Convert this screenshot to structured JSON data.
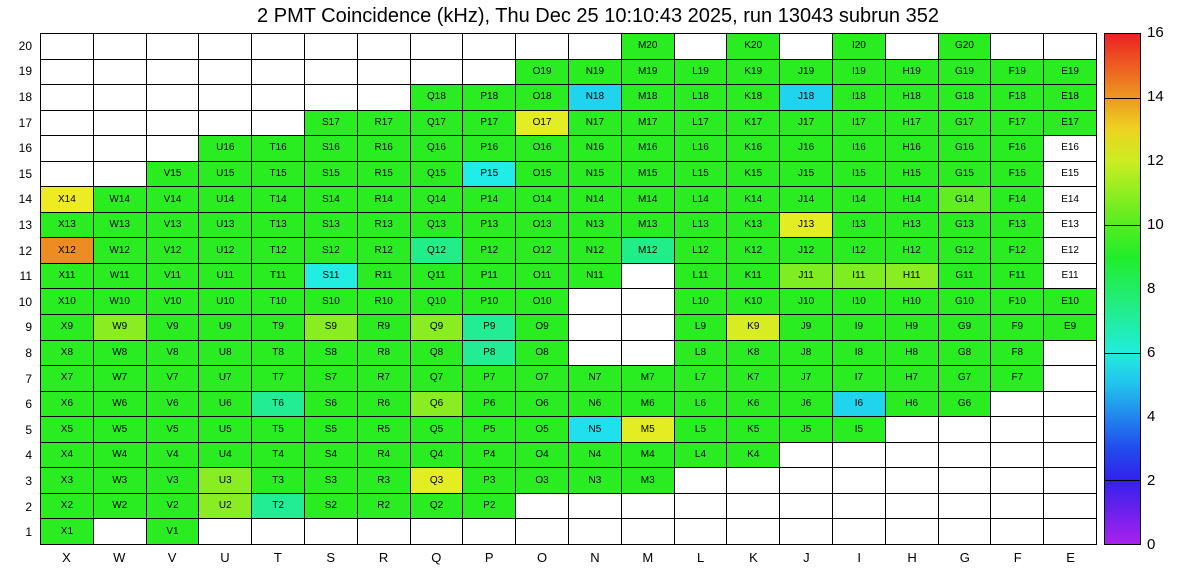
{
  "title": "2 PMT Coincidence (kHz), Thu Dec 25 10:10:43 2025, run 13043 subrun 352",
  "chart_data": {
    "type": "heatmap",
    "unit": "kHz",
    "run": 13043,
    "subrun": 352,
    "timestamp": "Thu Dec 25 10:10:43 2025",
    "columns": [
      "X",
      "W",
      "V",
      "U",
      "T",
      "S",
      "R",
      "Q",
      "P",
      "O",
      "N",
      "M",
      "L",
      "K",
      "J",
      "I",
      "H",
      "G",
      "F",
      "E"
    ],
    "row_min": 1,
    "row_max": 20,
    "colorbar": {
      "min": 0,
      "max": 16,
      "tick_labels": [
        0,
        2,
        4,
        6,
        8,
        10,
        12,
        14,
        16
      ],
      "line_ticks": [
        2,
        6,
        10,
        14
      ],
      "palette": "rainbow",
      "low_color": "#8a2be2",
      "high_color": "#ff0000"
    },
    "cells": [
      [
        "M",
        20,
        9.3
      ],
      [
        "K",
        20,
        9.3
      ],
      [
        "I",
        20,
        9.3
      ],
      [
        "G",
        20,
        9.3
      ],
      [
        "O",
        19,
        9.3
      ],
      [
        "N",
        19,
        9.3
      ],
      [
        "M",
        19,
        9.3
      ],
      [
        "L",
        19,
        9.3
      ],
      [
        "K",
        19,
        9.3
      ],
      [
        "J",
        19,
        9.3
      ],
      [
        "I",
        19,
        9.3
      ],
      [
        "H",
        19,
        9.3
      ],
      [
        "G",
        19,
        9.3
      ],
      [
        "F",
        19,
        9.3
      ],
      [
        "E",
        19,
        9.3
      ],
      [
        "Q",
        18,
        9.3
      ],
      [
        "P",
        18,
        9.3
      ],
      [
        "O",
        18,
        9.3
      ],
      [
        "N",
        18,
        5.3
      ],
      [
        "M",
        18,
        9.3
      ],
      [
        "L",
        18,
        9.3
      ],
      [
        "K",
        18,
        9.3
      ],
      [
        "J",
        18,
        5.3
      ],
      [
        "I",
        18,
        9.3
      ],
      [
        "H",
        18,
        9.3
      ],
      [
        "G",
        18,
        9.3
      ],
      [
        "F",
        18,
        9.3
      ],
      [
        "E",
        18,
        9.3
      ],
      [
        "S",
        17,
        9.3
      ],
      [
        "R",
        17,
        9.3
      ],
      [
        "Q",
        17,
        9.3
      ],
      [
        "P",
        17,
        9.3
      ],
      [
        "O",
        17,
        12.4
      ],
      [
        "N",
        17,
        9.3
      ],
      [
        "M",
        17,
        9.3
      ],
      [
        "L",
        17,
        9.3
      ],
      [
        "K",
        17,
        9.3
      ],
      [
        "J",
        17,
        9.3
      ],
      [
        "I",
        17,
        9.3
      ],
      [
        "H",
        17,
        9.3
      ],
      [
        "G",
        17,
        9.3
      ],
      [
        "F",
        17,
        9.3
      ],
      [
        "E",
        17,
        9.3
      ],
      [
        "U",
        16,
        9.3
      ],
      [
        "T",
        16,
        9.3
      ],
      [
        "S",
        16,
        9.3
      ],
      [
        "R",
        16,
        9.3
      ],
      [
        "Q",
        16,
        9.3
      ],
      [
        "P",
        16,
        9.3
      ],
      [
        "O",
        16,
        9.3
      ],
      [
        "N",
        16,
        9.3
      ],
      [
        "M",
        16,
        9.3
      ],
      [
        "L",
        16,
        9.3
      ],
      [
        "K",
        16,
        9.3
      ],
      [
        "J",
        16,
        9.3
      ],
      [
        "I",
        16,
        9.3
      ],
      [
        "H",
        16,
        9.3
      ],
      [
        "G",
        16,
        9.3
      ],
      [
        "F",
        16,
        9.3
      ],
      [
        "E",
        16,
        null
      ],
      [
        "V",
        15,
        9.3
      ],
      [
        "U",
        15,
        9.3
      ],
      [
        "T",
        15,
        9.3
      ],
      [
        "S",
        15,
        9.3
      ],
      [
        "R",
        15,
        9.3
      ],
      [
        "Q",
        15,
        9.3
      ],
      [
        "P",
        15,
        5.8
      ],
      [
        "O",
        15,
        9.3
      ],
      [
        "N",
        15,
        9.3
      ],
      [
        "M",
        15,
        9.3
      ],
      [
        "L",
        15,
        9.3
      ],
      [
        "K",
        15,
        9.3
      ],
      [
        "J",
        15,
        9.3
      ],
      [
        "I",
        15,
        9.3
      ],
      [
        "H",
        15,
        9.3
      ],
      [
        "G",
        15,
        9.3
      ],
      [
        "F",
        15,
        9.3
      ],
      [
        "E",
        15,
        null
      ],
      [
        "X",
        14,
        12.6
      ],
      [
        "W",
        14,
        9.3
      ],
      [
        "V",
        14,
        9.3
      ],
      [
        "U",
        14,
        9.3
      ],
      [
        "T",
        14,
        9.3
      ],
      [
        "S",
        14,
        9.3
      ],
      [
        "R",
        14,
        9.3
      ],
      [
        "Q",
        14,
        9.3
      ],
      [
        "P",
        14,
        9.3
      ],
      [
        "O",
        14,
        9.3
      ],
      [
        "N",
        14,
        9.3
      ],
      [
        "M",
        14,
        9.3
      ],
      [
        "L",
        14,
        9.3
      ],
      [
        "K",
        14,
        9.3
      ],
      [
        "J",
        14,
        9.3
      ],
      [
        "I",
        14,
        9.3
      ],
      [
        "H",
        14,
        9.3
      ],
      [
        "G",
        14,
        10.2
      ],
      [
        "F",
        14,
        9.3
      ],
      [
        "E",
        14,
        null
      ],
      [
        "X",
        13,
        9.3
      ],
      [
        "W",
        13,
        9.3
      ],
      [
        "V",
        13,
        9.3
      ],
      [
        "U",
        13,
        9.3
      ],
      [
        "T",
        13,
        9.3
      ],
      [
        "S",
        13,
        9.3
      ],
      [
        "R",
        13,
        9.3
      ],
      [
        "Q",
        13,
        9.3
      ],
      [
        "P",
        13,
        9.3
      ],
      [
        "O",
        13,
        9.3
      ],
      [
        "N",
        13,
        9.3
      ],
      [
        "M",
        13,
        9.3
      ],
      [
        "L",
        13,
        9.3
      ],
      [
        "K",
        13,
        9.3
      ],
      [
        "J",
        13,
        12.4
      ],
      [
        "I",
        13,
        9.3
      ],
      [
        "H",
        13,
        9.3
      ],
      [
        "G",
        13,
        9.3
      ],
      [
        "F",
        13,
        9.3
      ],
      [
        "E",
        13,
        null
      ],
      [
        "X",
        12,
        14.2
      ],
      [
        "W",
        12,
        9.3
      ],
      [
        "V",
        12,
        9.3
      ],
      [
        "U",
        12,
        9.3
      ],
      [
        "T",
        12,
        9.3
      ],
      [
        "S",
        12,
        9.3
      ],
      [
        "R",
        12,
        9.3
      ],
      [
        "Q",
        12,
        7.4
      ],
      [
        "P",
        12,
        9.3
      ],
      [
        "O",
        12,
        9.3
      ],
      [
        "N",
        12,
        9.3
      ],
      [
        "M",
        12,
        7.4
      ],
      [
        "L",
        12,
        9.3
      ],
      [
        "K",
        12,
        9.3
      ],
      [
        "J",
        12,
        9.3
      ],
      [
        "I",
        12,
        9.3
      ],
      [
        "H",
        12,
        9.3
      ],
      [
        "G",
        12,
        9.3
      ],
      [
        "F",
        12,
        9.3
      ],
      [
        "E",
        12,
        null
      ],
      [
        "X",
        11,
        9.3
      ],
      [
        "W",
        11,
        9.3
      ],
      [
        "V",
        11,
        9.3
      ],
      [
        "U",
        11,
        9.3
      ],
      [
        "T",
        11,
        9.3
      ],
      [
        "S",
        11,
        5.9
      ],
      [
        "R",
        11,
        9.3
      ],
      [
        "Q",
        11,
        9.3
      ],
      [
        "P",
        11,
        9.3
      ],
      [
        "O",
        11,
        9.3
      ],
      [
        "N",
        11,
        9.3
      ],
      [
        "L",
        11,
        9.3
      ],
      [
        "K",
        11,
        9.3
      ],
      [
        "J",
        11,
        10.7
      ],
      [
        "I",
        11,
        10.7
      ],
      [
        "H",
        11,
        10.9
      ],
      [
        "G",
        11,
        9.3
      ],
      [
        "F",
        11,
        9.3
      ],
      [
        "E",
        11,
        null
      ],
      [
        "X",
        10,
        9.3
      ],
      [
        "W",
        10,
        9.3
      ],
      [
        "V",
        10,
        9.3
      ],
      [
        "U",
        10,
        9.3
      ],
      [
        "T",
        10,
        9.3
      ],
      [
        "S",
        10,
        9.3
      ],
      [
        "R",
        10,
        9.3
      ],
      [
        "Q",
        10,
        9.3
      ],
      [
        "P",
        10,
        9.3
      ],
      [
        "O",
        10,
        9.3
      ],
      [
        "L",
        10,
        9.3
      ],
      [
        "K",
        10,
        9.3
      ],
      [
        "J",
        10,
        9.3
      ],
      [
        "I",
        10,
        9.3
      ],
      [
        "H",
        10,
        9.3
      ],
      [
        "G",
        10,
        9.3
      ],
      [
        "F",
        10,
        9.3
      ],
      [
        "E",
        10,
        9.3
      ],
      [
        "X",
        9,
        9.3
      ],
      [
        "W",
        9,
        10.9
      ],
      [
        "V",
        9,
        9.3
      ],
      [
        "U",
        9,
        9.3
      ],
      [
        "T",
        9,
        9.3
      ],
      [
        "S",
        9,
        10.9
      ],
      [
        "R",
        9,
        9.3
      ],
      [
        "Q",
        9,
        10.9
      ],
      [
        "P",
        9,
        7.2
      ],
      [
        "O",
        9,
        9.3
      ],
      [
        "L",
        9,
        9.3
      ],
      [
        "K",
        9,
        12.2
      ],
      [
        "J",
        9,
        9.3
      ],
      [
        "I",
        9,
        9.3
      ],
      [
        "H",
        9,
        9.3
      ],
      [
        "G",
        9,
        9.3
      ],
      [
        "F",
        9,
        9.3
      ],
      [
        "E",
        9,
        9.3
      ],
      [
        "X",
        8,
        9.3
      ],
      [
        "W",
        8,
        9.3
      ],
      [
        "V",
        8,
        9.3
      ],
      [
        "U",
        8,
        9.3
      ],
      [
        "T",
        8,
        9.3
      ],
      [
        "S",
        8,
        9.3
      ],
      [
        "R",
        8,
        9.3
      ],
      [
        "Q",
        8,
        9.3
      ],
      [
        "P",
        8,
        7.2
      ],
      [
        "O",
        8,
        9.3
      ],
      [
        "L",
        8,
        9.3
      ],
      [
        "K",
        8,
        9.3
      ],
      [
        "J",
        8,
        9.3
      ],
      [
        "I",
        8,
        9.3
      ],
      [
        "H",
        8,
        9.3
      ],
      [
        "G",
        8,
        9.3
      ],
      [
        "F",
        8,
        9.3
      ],
      [
        "X",
        7,
        9.3
      ],
      [
        "W",
        7,
        9.3
      ],
      [
        "V",
        7,
        9.3
      ],
      [
        "U",
        7,
        9.3
      ],
      [
        "T",
        7,
        9.3
      ],
      [
        "S",
        7,
        9.3
      ],
      [
        "R",
        7,
        9.3
      ],
      [
        "Q",
        7,
        9.3
      ],
      [
        "P",
        7,
        9.3
      ],
      [
        "O",
        7,
        9.3
      ],
      [
        "N",
        7,
        9.3
      ],
      [
        "M",
        7,
        9.3
      ],
      [
        "L",
        7,
        9.3
      ],
      [
        "K",
        7,
        9.3
      ],
      [
        "J",
        7,
        9.3
      ],
      [
        "I",
        7,
        9.3
      ],
      [
        "H",
        7,
        9.3
      ],
      [
        "G",
        7,
        9.3
      ],
      [
        "F",
        7,
        9.3
      ],
      [
        "X",
        6,
        9.3
      ],
      [
        "W",
        6,
        9.3
      ],
      [
        "V",
        6,
        9.3
      ],
      [
        "U",
        6,
        9.3
      ],
      [
        "T",
        6,
        7.2
      ],
      [
        "S",
        6,
        9.3
      ],
      [
        "R",
        6,
        9.3
      ],
      [
        "Q",
        6,
        10.9
      ],
      [
        "P",
        6,
        9.3
      ],
      [
        "O",
        6,
        9.3
      ],
      [
        "N",
        6,
        9.3
      ],
      [
        "M",
        6,
        9.3
      ],
      [
        "L",
        6,
        9.3
      ],
      [
        "K",
        6,
        9.3
      ],
      [
        "J",
        6,
        9.3
      ],
      [
        "I",
        6,
        5.3
      ],
      [
        "H",
        6,
        9.3
      ],
      [
        "G",
        6,
        9.3
      ],
      [
        "X",
        5,
        9.3
      ],
      [
        "W",
        5,
        9.3
      ],
      [
        "V",
        5,
        9.3
      ],
      [
        "U",
        5,
        9.3
      ],
      [
        "T",
        5,
        9.3
      ],
      [
        "S",
        5,
        9.3
      ],
      [
        "R",
        5,
        9.3
      ],
      [
        "Q",
        5,
        9.3
      ],
      [
        "P",
        5,
        9.3
      ],
      [
        "O",
        5,
        9.3
      ],
      [
        "N",
        5,
        5.5
      ],
      [
        "M",
        5,
        12.4
      ],
      [
        "L",
        5,
        9.3
      ],
      [
        "K",
        5,
        9.3
      ],
      [
        "J",
        5,
        9.3
      ],
      [
        "I",
        5,
        9.3
      ],
      [
        "X",
        4,
        9.3
      ],
      [
        "W",
        4,
        9.3
      ],
      [
        "V",
        4,
        9.3
      ],
      [
        "U",
        4,
        9.3
      ],
      [
        "T",
        4,
        9.3
      ],
      [
        "S",
        4,
        9.3
      ],
      [
        "R",
        4,
        9.3
      ],
      [
        "Q",
        4,
        9.3
      ],
      [
        "P",
        4,
        9.3
      ],
      [
        "O",
        4,
        9.3
      ],
      [
        "N",
        4,
        9.3
      ],
      [
        "M",
        4,
        9.3
      ],
      [
        "L",
        4,
        9.3
      ],
      [
        "K",
        4,
        9.3
      ],
      [
        "X",
        3,
        9.3
      ],
      [
        "W",
        3,
        9.3
      ],
      [
        "V",
        3,
        9.3
      ],
      [
        "U",
        3,
        10.9
      ],
      [
        "T",
        3,
        9.3
      ],
      [
        "S",
        3,
        9.3
      ],
      [
        "R",
        3,
        9.3
      ],
      [
        "Q",
        3,
        12.4
      ],
      [
        "P",
        3,
        9.3
      ],
      [
        "O",
        3,
        9.3
      ],
      [
        "N",
        3,
        9.3
      ],
      [
        "M",
        3,
        9.3
      ],
      [
        "X",
        2,
        9.3
      ],
      [
        "W",
        2,
        9.3
      ],
      [
        "V",
        2,
        9.3
      ],
      [
        "U",
        2,
        10.9
      ],
      [
        "T",
        2,
        7.2
      ],
      [
        "S",
        2,
        9.3
      ],
      [
        "R",
        2,
        9.3
      ],
      [
        "Q",
        2,
        9.3
      ],
      [
        "P",
        2,
        9.3
      ],
      [
        "X",
        1,
        9.3
      ],
      [
        "V",
        1,
        9.3
      ]
    ]
  }
}
